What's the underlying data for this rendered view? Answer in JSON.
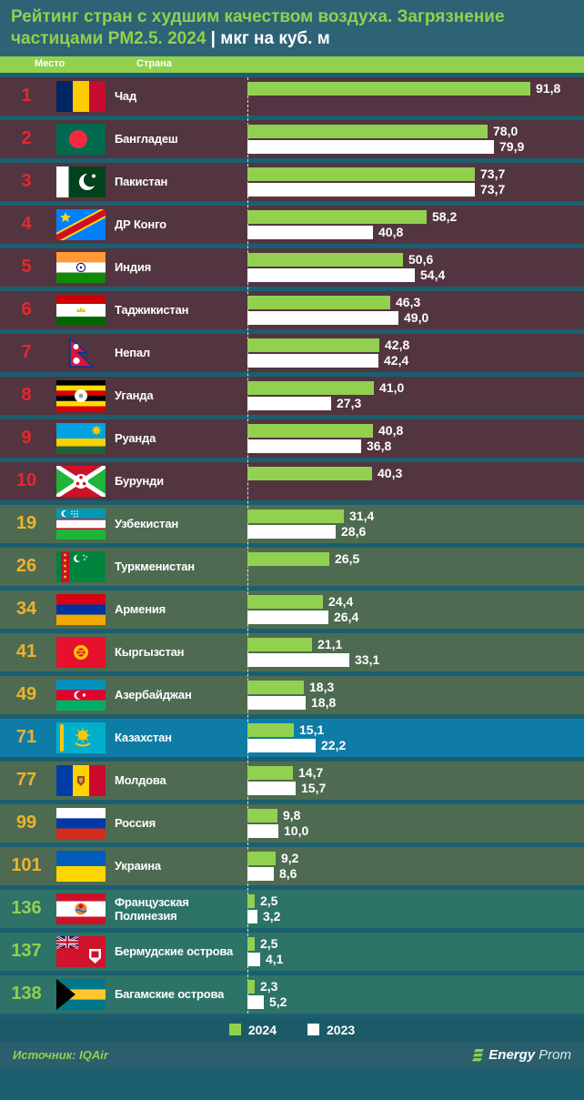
{
  "title": {
    "text": "Рейтинг стран с худшим качеством воздуха. Загрязнение частицами PM2.5. 2024",
    "unit": "| мкг на куб. м"
  },
  "columns": {
    "rank": "Место",
    "country": "Страна"
  },
  "legend": {
    "y2024": "2024",
    "y2023": "2023"
  },
  "source": "Источник: IQAir",
  "brand": {
    "bold": "Energy",
    "light": "Prom"
  },
  "colors": {
    "page_bg": "#1a5f70",
    "title_bg": "#2d6375",
    "green": "#92d050",
    "row_top": "#523540",
    "row_mid": "#4e6b51",
    "row_kz": "#0f7ca6",
    "row_low": "#2e7367",
    "rank_top": "#e8262d",
    "rank_mid": "#eeb32a",
    "rank_low": "#92d050",
    "legend_bg": "#1d5a68",
    "footer_bg": "#2b5f6d",
    "bar_2024": "#92d050",
    "bar_2023": "#ffffff"
  },
  "chart_data": {
    "type": "bar",
    "orientation": "horizontal",
    "title": "Рейтинг стран с худшим качеством воздуха. Загрязнение частицами PM2.5. 2024",
    "unit": "мкг на куб. м",
    "series_names": [
      "2024",
      "2023"
    ],
    "value_axis_max": 92,
    "decimal_separator": ",",
    "rows": [
      {
        "rank": "1",
        "country": "Чад",
        "flag": "chad",
        "tier": "top",
        "v2024": 91.8,
        "v2023": null
      },
      {
        "rank": "2",
        "country": "Бангладеш",
        "flag": "bangladesh",
        "tier": "top",
        "v2024": 78.0,
        "v2023": 79.9
      },
      {
        "rank": "3",
        "country": "Пакистан",
        "flag": "pakistan",
        "tier": "top",
        "v2024": 73.7,
        "v2023": 73.7
      },
      {
        "rank": "4",
        "country": "ДР Конго",
        "flag": "drcongo",
        "tier": "top",
        "v2024": 58.2,
        "v2023": 40.8
      },
      {
        "rank": "5",
        "country": "Индия",
        "flag": "india",
        "tier": "top",
        "v2024": 50.6,
        "v2023": 54.4
      },
      {
        "rank": "6",
        "country": "Таджикистан",
        "flag": "tajikistan",
        "tier": "top",
        "v2024": 46.3,
        "v2023": 49.0
      },
      {
        "rank": "7",
        "country": "Непал",
        "flag": "nepal",
        "tier": "top",
        "v2024": 42.8,
        "v2023": 42.4
      },
      {
        "rank": "8",
        "country": "Уганда",
        "flag": "uganda",
        "tier": "top",
        "v2024": 41.0,
        "v2023": 27.3
      },
      {
        "rank": "9",
        "country": "Руанда",
        "flag": "rwanda",
        "tier": "top",
        "v2024": 40.8,
        "v2023": 36.8
      },
      {
        "rank": "10",
        "country": "Бурунди",
        "flag": "burundi",
        "tier": "top",
        "v2024": 40.3,
        "v2023": null
      },
      {
        "rank": "19",
        "country": "Узбекистан",
        "flag": "uzbekistan",
        "tier": "mid",
        "v2024": 31.4,
        "v2023": 28.6
      },
      {
        "rank": "26",
        "country": "Туркменистан",
        "flag": "turkmenistan",
        "tier": "mid",
        "v2024": 26.5,
        "v2023": null
      },
      {
        "rank": "34",
        "country": "Армения",
        "flag": "armenia",
        "tier": "mid",
        "v2024": 24.4,
        "v2023": 26.4
      },
      {
        "rank": "41",
        "country": "Кыргызстан",
        "flag": "kyrgyzstan",
        "tier": "mid",
        "v2024": 21.1,
        "v2023": 33.1
      },
      {
        "rank": "49",
        "country": "Азербайджан",
        "flag": "azerbaijan",
        "tier": "mid",
        "v2024": 18.3,
        "v2023": 18.8
      },
      {
        "rank": "71",
        "country": "Казахстан",
        "flag": "kazakhstan",
        "tier": "kz",
        "v2024": 15.1,
        "v2023": 22.2
      },
      {
        "rank": "77",
        "country": "Молдова",
        "flag": "moldova",
        "tier": "mid",
        "v2024": 14.7,
        "v2023": 15.7
      },
      {
        "rank": "99",
        "country": "Россия",
        "flag": "russia",
        "tier": "mid",
        "v2024": 9.8,
        "v2023": 10.0
      },
      {
        "rank": "101",
        "country": "Украина",
        "flag": "ukraine",
        "tier": "mid",
        "v2024": 9.2,
        "v2023": 8.6
      },
      {
        "rank": "136",
        "country": "Французская Полинезия",
        "flag": "french_polynesia",
        "tier": "low",
        "v2024": 2.5,
        "v2023": 3.2
      },
      {
        "rank": "137",
        "country": "Бермудские острова",
        "flag": "bermuda",
        "tier": "low",
        "v2024": 2.5,
        "v2023": 4.1
      },
      {
        "rank": "138",
        "country": "Багамские острова",
        "flag": "bahamas",
        "tier": "low",
        "v2024": 2.3,
        "v2023": 5.2
      }
    ]
  }
}
